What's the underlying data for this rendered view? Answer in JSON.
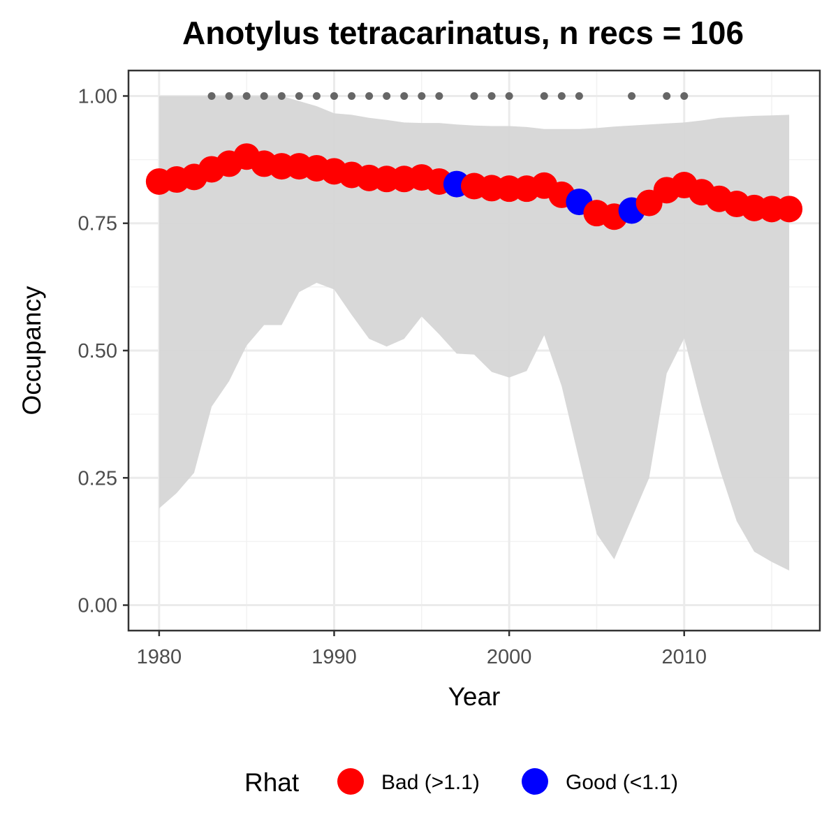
{
  "chart_data": {
    "type": "line",
    "title": "Anotylus tetracarinatus, n recs = 106",
    "xlabel": "Year",
    "ylabel": "Occupancy",
    "xlim": [
      1978.25,
      2017.75
    ],
    "ylim": [
      -0.05,
      1.05
    ],
    "x_ticks": [
      1980,
      1990,
      2000,
      2010
    ],
    "x_tick_labels": [
      "1980",
      "1990",
      "2000",
      "2010"
    ],
    "y_ticks": [
      0,
      0.25,
      0.5,
      0.75,
      1.0
    ],
    "y_tick_labels": [
      "0.00",
      "0.25",
      "0.50",
      "0.75",
      "1.00"
    ],
    "grid": true,
    "legend_position": "bottom",
    "legend": {
      "title": "Rhat",
      "entries": [
        {
          "label": "Bad (>1.1)",
          "color": "#ff0000"
        },
        {
          "label": "Good (<1.1)",
          "color": "#0000ff"
        }
      ]
    },
    "colors": {
      "bad": "#ff0000",
      "good": "#0000ff",
      "ribbon": "#d6d6d6",
      "record_dots": "#666666"
    },
    "x": [
      1980,
      1981,
      1982,
      1983,
      1984,
      1985,
      1986,
      1987,
      1988,
      1989,
      1990,
      1991,
      1992,
      1993,
      1994,
      1995,
      1996,
      1997,
      1998,
      1999,
      2000,
      2001,
      2002,
      2003,
      2004,
      2005,
      2006,
      2007,
      2008,
      2009,
      2010,
      2011,
      2012,
      2013,
      2014,
      2015,
      2016
    ],
    "series": [
      {
        "values": [
          0.832,
          0.836,
          0.841,
          0.856,
          0.867,
          0.881,
          0.867,
          0.862,
          0.862,
          0.858,
          0.852,
          0.845,
          0.839,
          0.837,
          0.837,
          0.84,
          0.832,
          0.827,
          0.823,
          0.819,
          0.818,
          0.818,
          0.824,
          0.806,
          0.792,
          0.77,
          0.763,
          0.775,
          0.79,
          0.815,
          0.825,
          0.811,
          0.798,
          0.788,
          0.78,
          0.778,
          0.778
        ],
        "rhat": [
          "Bad",
          "Bad",
          "Bad",
          "Bad",
          "Bad",
          "Bad",
          "Bad",
          "Bad",
          "Bad",
          "Bad",
          "Bad",
          "Bad",
          "Bad",
          "Bad",
          "Bad",
          "Bad",
          "Bad",
          "Good",
          "Bad",
          "Bad",
          "Bad",
          "Bad",
          "Bad",
          "Bad",
          "Good",
          "Bad",
          "Bad",
          "Good",
          "Bad",
          "Bad",
          "Bad",
          "Bad",
          "Bad",
          "Bad",
          "Bad",
          "Bad",
          "Bad"
        ]
      }
    ],
    "ribbon_upper": [
      1.0,
      1.0,
      1.0,
      1.0,
      1.0,
      1.0,
      1.0,
      1.0,
      0.99,
      0.98,
      0.966,
      0.963,
      0.957,
      0.953,
      0.948,
      0.947,
      0.947,
      0.944,
      0.942,
      0.941,
      0.941,
      0.939,
      0.935,
      0.935,
      0.935,
      0.937,
      0.94,
      0.942,
      0.944,
      0.946,
      0.948,
      0.952,
      0.957,
      0.959,
      0.961,
      0.962,
      0.963
    ],
    "ribbon_lower": [
      0.19,
      0.22,
      0.26,
      0.39,
      0.44,
      0.51,
      0.55,
      0.55,
      0.615,
      0.633,
      0.62,
      0.57,
      0.523,
      0.508,
      0.523,
      0.567,
      0.532,
      0.494,
      0.492,
      0.458,
      0.447,
      0.46,
      0.53,
      0.43,
      0.285,
      0.14,
      0.09,
      0.17,
      0.25,
      0.455,
      0.524,
      0.39,
      0.27,
      0.165,
      0.105,
      0.085,
      0.068
    ],
    "record_years": [
      1983,
      1984,
      1985,
      1986,
      1987,
      1988,
      1989,
      1990,
      1991,
      1992,
      1993,
      1994,
      1995,
      1996,
      1998,
      1999,
      2000,
      2002,
      2003,
      2004,
      2007,
      2009,
      2010
    ],
    "record_y": 1.0
  }
}
